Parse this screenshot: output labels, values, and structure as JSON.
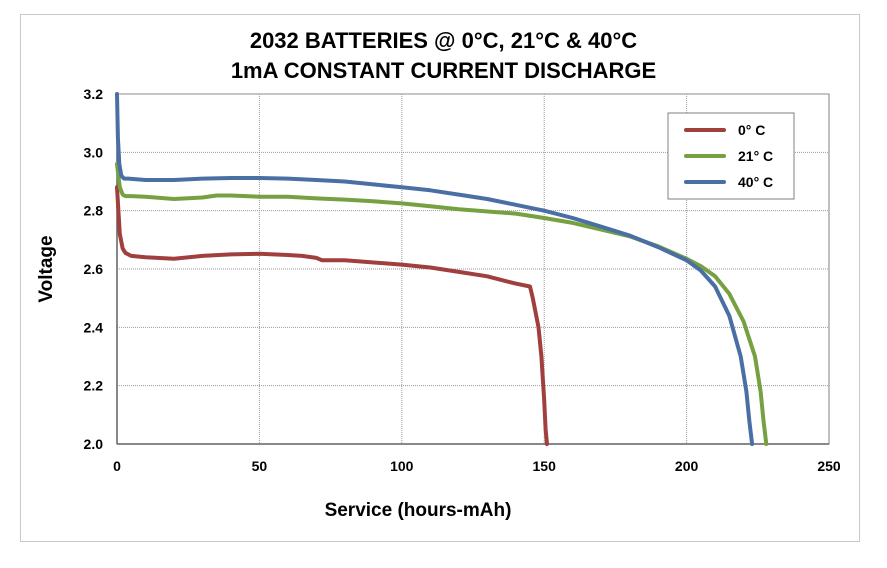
{
  "chart_data": {
    "type": "line",
    "title": "2032  BATTERIES @ 0°C, 21°C & 40°C",
    "subtitle": "1mA CONSTANT CURRENT DISCHARGE",
    "xlabel": "Service (hours-mAh)",
    "ylabel": "Voltage",
    "xlim": [
      0,
      250
    ],
    "ylim": [
      2.0,
      3.2
    ],
    "x_ticks": [
      0,
      50,
      100,
      150,
      200,
      250
    ],
    "x_tick_labels": [
      "0",
      "50",
      "100",
      "150",
      "200",
      "250"
    ],
    "y_ticks": [
      2.0,
      2.2,
      2.4,
      2.6,
      2.8,
      3.0,
      3.2
    ],
    "y_tick_labels": [
      "2.0",
      "2.2",
      "2.4",
      "2.6",
      "2.8",
      "3.0",
      "3.2"
    ],
    "grid": true,
    "legend_position": "top-right",
    "series": [
      {
        "name": "0° C",
        "color": "#a0403e",
        "x": [
          0,
          0.5,
          1,
          2,
          3,
          5,
          10,
          20,
          30,
          40,
          50,
          60,
          65,
          70,
          72,
          80,
          100,
          110,
          120,
          130,
          140,
          145,
          146,
          148,
          149,
          150,
          150.5,
          151
        ],
        "y": [
          2.88,
          2.8,
          2.72,
          2.67,
          2.655,
          2.645,
          2.64,
          2.635,
          2.645,
          2.65,
          2.652,
          2.648,
          2.645,
          2.638,
          2.63,
          2.63,
          2.615,
          2.605,
          2.59,
          2.575,
          2.55,
          2.54,
          2.5,
          2.4,
          2.3,
          2.15,
          2.05,
          2.0
        ]
      },
      {
        "name": "21° C",
        "color": "#77a040",
        "x": [
          0,
          0.5,
          1,
          2,
          3,
          5,
          10,
          20,
          30,
          35,
          40,
          50,
          60,
          70,
          80,
          90,
          100,
          110,
          120,
          140,
          150,
          160,
          170,
          180,
          190,
          200,
          205,
          210,
          215,
          220,
          224,
          226,
          227,
          228
        ],
        "y": [
          2.96,
          2.92,
          2.88,
          2.855,
          2.85,
          2.85,
          2.848,
          2.84,
          2.845,
          2.852,
          2.852,
          2.848,
          2.848,
          2.842,
          2.838,
          2.832,
          2.825,
          2.815,
          2.805,
          2.79,
          2.775,
          2.758,
          2.735,
          2.712,
          2.678,
          2.635,
          2.61,
          2.575,
          2.515,
          2.42,
          2.3,
          2.18,
          2.08,
          2.0
        ]
      },
      {
        "name": "40° C",
        "color": "#4a6fa5",
        "x": [
          0,
          0.3,
          0.8,
          1.5,
          2.5,
          4,
          10,
          20,
          30,
          40,
          50,
          60,
          70,
          80,
          90,
          100,
          110,
          120,
          130,
          140,
          150,
          160,
          170,
          180,
          190,
          200,
          205,
          210,
          215,
          219,
          221,
          222,
          223
        ],
        "y": [
          3.2,
          3.05,
          2.96,
          2.92,
          2.91,
          2.91,
          2.905,
          2.905,
          2.91,
          2.912,
          2.912,
          2.91,
          2.905,
          2.9,
          2.89,
          2.88,
          2.87,
          2.855,
          2.84,
          2.82,
          2.8,
          2.775,
          2.745,
          2.715,
          2.675,
          2.63,
          2.595,
          2.54,
          2.44,
          2.3,
          2.18,
          2.08,
          2.0
        ]
      }
    ]
  }
}
